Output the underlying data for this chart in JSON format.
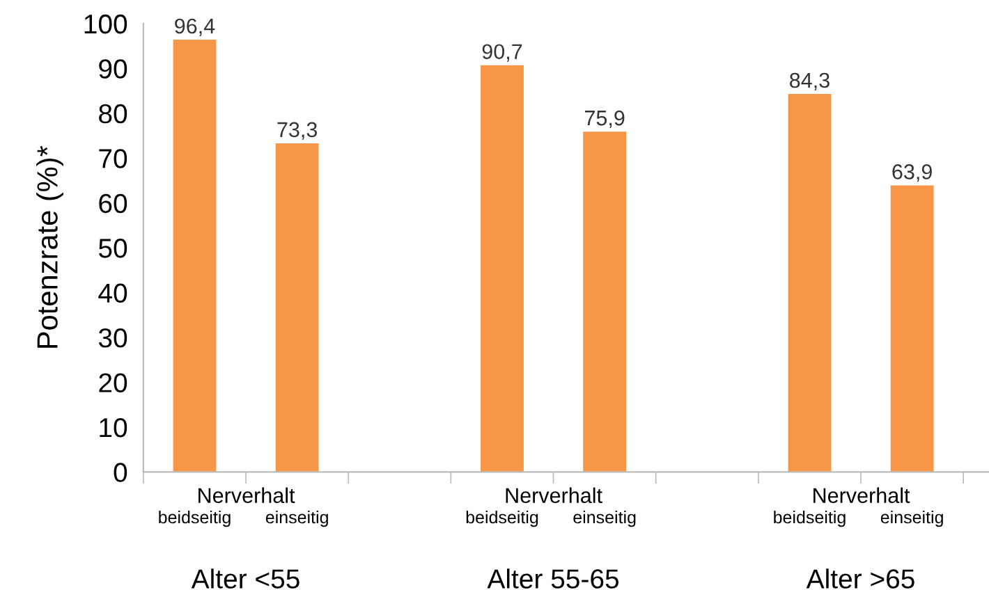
{
  "chart_data": {
    "type": "bar",
    "ylabel": "Potenzrate (%)*",
    "categories": [
      "beidseitig",
      "einseitig",
      "beidseitig",
      "einseitig",
      "beidseitig",
      "einseitig"
    ],
    "values": [
      96.4,
      73.3,
      90.7,
      75.9,
      84.3,
      63.9
    ],
    "value_labels": [
      "96,4",
      "73,3",
      "90,7",
      "75,9",
      "84,3",
      "63,9"
    ],
    "color": "#f79646",
    "ylim": [
      0,
      100
    ],
    "yticks": [
      0,
      10,
      20,
      30,
      40,
      50,
      60,
      70,
      80,
      90,
      100
    ],
    "annotations": [
      "Nerverhalt",
      "Nerverhalt",
      "Nerverhalt",
      "Alter <55",
      "Alter 55-65",
      "Alter >65"
    ],
    "grid": false,
    "legend": false
  }
}
